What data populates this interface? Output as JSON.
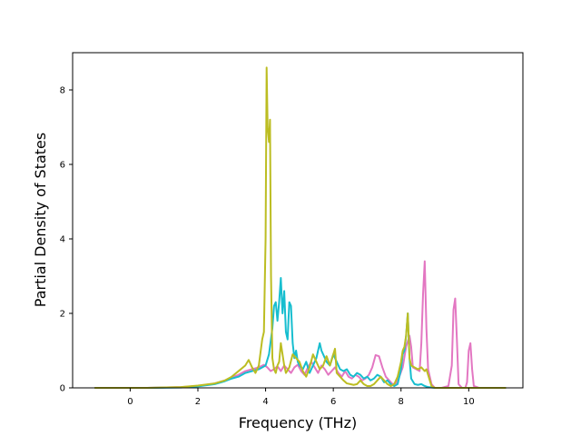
{
  "chart_data": {
    "type": "line",
    "title": "",
    "xlabel": "Frequency (THz)",
    "ylabel": "Partial Density of States",
    "xlim": [
      -1.7,
      11.6
    ],
    "ylim": [
      0,
      9.0
    ],
    "xticks": [
      0,
      2,
      4,
      6,
      8,
      10
    ],
    "yticks": [
      0,
      2,
      4,
      6,
      8
    ],
    "grid": false,
    "legend": "none",
    "series": [
      {
        "color": "#e377c2",
        "x": [
          -1.05,
          0.5,
          1.5,
          2.0,
          2.5,
          2.8,
          3.0,
          3.2,
          3.4,
          3.6,
          3.8,
          3.95,
          4.05,
          4.15,
          4.25,
          4.35,
          4.45,
          4.55,
          4.65,
          4.75,
          4.85,
          4.95,
          5.05,
          5.15,
          5.25,
          5.35,
          5.45,
          5.55,
          5.65,
          5.75,
          5.85,
          5.95,
          6.05,
          6.15,
          6.25,
          6.35,
          6.45,
          6.55,
          6.65,
          6.75,
          6.85,
          6.95,
          7.05,
          7.15,
          7.25,
          7.35,
          7.45,
          7.55,
          7.65,
          7.75,
          7.85,
          7.95,
          8.05,
          8.15,
          8.2,
          8.25,
          8.3,
          8.35,
          8.45,
          8.55,
          8.6,
          8.65,
          8.7,
          8.75,
          8.8,
          8.9,
          9.0,
          9.2,
          9.4,
          9.5,
          9.55,
          9.6,
          9.65,
          9.7,
          9.8,
          9.9,
          9.95,
          10.0,
          10.05,
          10.1,
          10.15,
          10.3,
          11.1
        ],
        "y": [
          0,
          0,
          0.02,
          0.05,
          0.12,
          0.2,
          0.28,
          0.35,
          0.45,
          0.5,
          0.55,
          0.62,
          0.55,
          0.45,
          0.5,
          0.58,
          0.45,
          0.6,
          0.5,
          0.4,
          0.55,
          0.62,
          0.45,
          0.35,
          0.55,
          0.7,
          0.55,
          0.4,
          0.6,
          0.5,
          0.35,
          0.45,
          0.55,
          0.4,
          0.3,
          0.45,
          0.3,
          0.25,
          0.35,
          0.3,
          0.2,
          0.25,
          0.35,
          0.55,
          0.88,
          0.85,
          0.55,
          0.3,
          0.2,
          0.1,
          0.12,
          0.3,
          0.55,
          1.1,
          1.25,
          1.4,
          1.1,
          0.55,
          0.5,
          0.45,
          1.2,
          2.5,
          3.4,
          1.6,
          0.5,
          0.1,
          0.0,
          0.0,
          0.05,
          0.6,
          2.1,
          2.4,
          1.3,
          0.1,
          0.0,
          0.0,
          0.15,
          1.0,
          1.2,
          0.5,
          0.05,
          0.0,
          0.0
        ]
      },
      {
        "color": "#17becf",
        "x": [
          -1.05,
          0.5,
          1.5,
          2.0,
          2.5,
          2.8,
          3.0,
          3.2,
          3.4,
          3.6,
          3.8,
          3.9,
          4.0,
          4.1,
          4.2,
          4.25,
          4.3,
          4.35,
          4.4,
          4.45,
          4.5,
          4.55,
          4.6,
          4.65,
          4.7,
          4.75,
          4.8,
          4.85,
          4.9,
          4.95,
          5.0,
          5.1,
          5.2,
          5.3,
          5.4,
          5.5,
          5.6,
          5.65,
          5.7,
          5.8,
          5.9,
          6.0,
          6.1,
          6.2,
          6.3,
          6.4,
          6.5,
          6.6,
          6.7,
          6.8,
          6.9,
          7.0,
          7.1,
          7.2,
          7.3,
          7.4,
          7.5,
          7.6,
          7.7,
          7.8,
          7.9,
          8.0,
          8.05,
          8.1,
          8.15,
          8.2,
          8.25,
          8.3,
          8.4,
          8.5,
          8.6,
          8.7,
          8.8,
          9.0,
          11.1
        ],
        "y": [
          0,
          0,
          0.01,
          0.04,
          0.1,
          0.18,
          0.25,
          0.3,
          0.4,
          0.45,
          0.5,
          0.55,
          0.6,
          0.9,
          1.6,
          2.2,
          2.3,
          1.8,
          2.3,
          2.95,
          2.0,
          2.6,
          1.5,
          1.3,
          2.3,
          2.2,
          1.2,
          0.8,
          1.0,
          0.7,
          0.6,
          0.5,
          0.7,
          0.4,
          0.6,
          0.8,
          1.2,
          1.0,
          0.9,
          0.7,
          0.6,
          0.9,
          0.7,
          0.5,
          0.45,
          0.5,
          0.35,
          0.3,
          0.4,
          0.35,
          0.25,
          0.3,
          0.2,
          0.25,
          0.35,
          0.3,
          0.15,
          0.2,
          0.1,
          0.05,
          0.1,
          0.5,
          0.9,
          1.0,
          1.4,
          2.0,
          0.8,
          0.25,
          0.1,
          0.08,
          0.1,
          0.05,
          0.02,
          0.0,
          0.0
        ]
      },
      {
        "color": "#bcbd22",
        "x": [
          -1.05,
          0.5,
          1.5,
          2.0,
          2.5,
          2.8,
          3.0,
          3.2,
          3.4,
          3.5,
          3.6,
          3.7,
          3.8,
          3.9,
          3.95,
          4.0,
          4.03,
          4.06,
          4.1,
          4.13,
          4.16,
          4.2,
          4.25,
          4.3,
          4.35,
          4.4,
          4.45,
          4.5,
          4.55,
          4.6,
          4.7,
          4.8,
          4.9,
          5.0,
          5.1,
          5.2,
          5.3,
          5.4,
          5.5,
          5.6,
          5.7,
          5.8,
          5.9,
          6.0,
          6.05,
          6.1,
          6.2,
          6.3,
          6.4,
          6.5,
          6.6,
          6.7,
          6.8,
          6.9,
          7.0,
          7.1,
          7.2,
          7.3,
          7.4,
          7.5,
          7.6,
          7.7,
          7.8,
          7.9,
          8.0,
          8.05,
          8.1,
          8.15,
          8.2,
          8.25,
          8.3,
          8.4,
          8.5,
          8.6,
          8.7,
          8.75,
          8.8,
          8.85,
          8.9,
          9.0,
          11.1
        ],
        "y": [
          0,
          0,
          0.02,
          0.06,
          0.12,
          0.2,
          0.3,
          0.45,
          0.6,
          0.75,
          0.55,
          0.4,
          0.6,
          1.3,
          1.5,
          4.0,
          8.6,
          7.0,
          6.6,
          7.2,
          3.0,
          0.8,
          0.5,
          0.4,
          0.6,
          0.7,
          1.2,
          0.9,
          0.6,
          0.4,
          0.55,
          0.9,
          0.8,
          0.7,
          0.45,
          0.3,
          0.55,
          0.9,
          0.7,
          0.5,
          0.6,
          0.85,
          0.6,
          0.9,
          1.05,
          0.4,
          0.3,
          0.2,
          0.12,
          0.1,
          0.08,
          0.1,
          0.2,
          0.1,
          0.05,
          0.05,
          0.1,
          0.2,
          0.3,
          0.2,
          0.1,
          0.05,
          0.1,
          0.3,
          0.7,
          1.0,
          1.1,
          1.4,
          2.0,
          0.8,
          0.6,
          0.55,
          0.5,
          0.55,
          0.45,
          0.5,
          0.35,
          0.2,
          0.05,
          0.0,
          0.0
        ]
      }
    ]
  }
}
